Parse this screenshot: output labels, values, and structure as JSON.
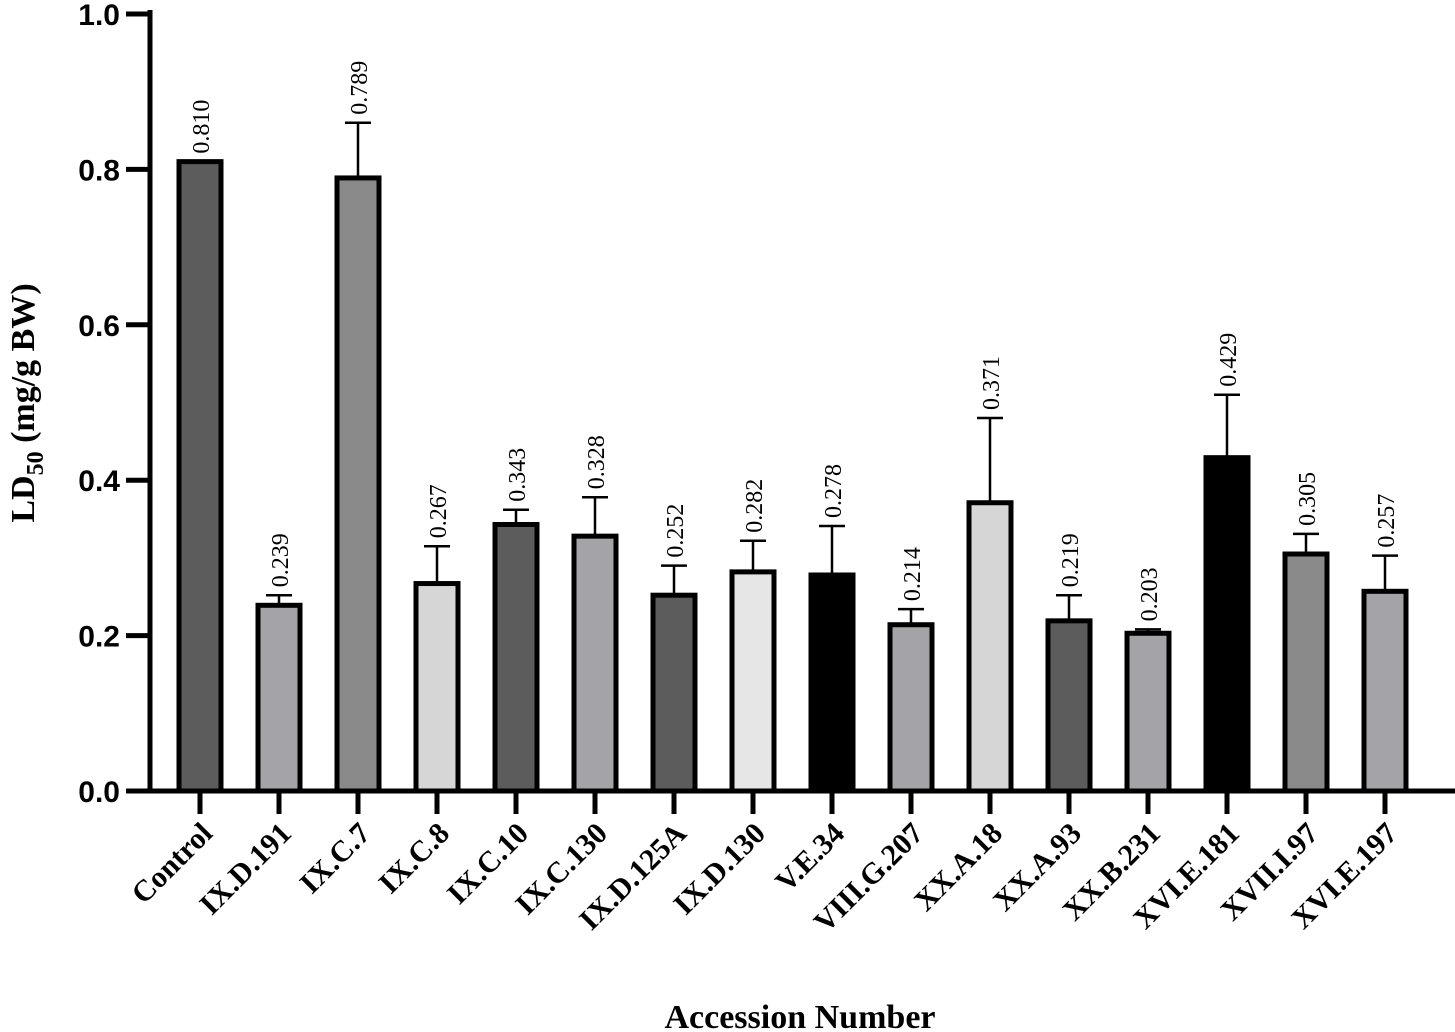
{
  "chart_data": {
    "type": "bar",
    "title": "",
    "xlabel": "Accession Number",
    "ylabel": "LD50 (mg/g BW)",
    "ylabel_main": "LD",
    "ylabel_sub": "50",
    "ylabel_rest": " (mg/g BW)",
    "ylim": [
      0,
      1.0
    ],
    "yticks": [
      "0.0",
      "0.2",
      "0.4",
      "0.6",
      "0.8",
      "1.0"
    ],
    "categories": [
      "Control",
      "IX.D.191",
      "IX.C.7",
      "IX.C.8",
      "IX.C.10",
      "IX.C.130",
      "IX.D.125A",
      "IX.D.130",
      "V.E.34",
      "VIII.G.207",
      "XX.A.18",
      "XX.A.93",
      "XX.B.231",
      "XVI.E.181",
      "XVII.I.97",
      "XVI.E.197"
    ],
    "values": [
      0.81,
      0.239,
      0.789,
      0.267,
      0.343,
      0.328,
      0.252,
      0.282,
      0.278,
      0.214,
      0.371,
      0.219,
      0.203,
      0.429,
      0.305,
      0.257
    ],
    "value_labels": [
      "0.810",
      "0.239",
      "0.789",
      "0.267",
      "0.343",
      "0.328",
      "0.252",
      "0.282",
      "0.278",
      "0.214",
      "0.371",
      "0.219",
      "0.203",
      "0.429",
      "0.305",
      "0.257"
    ],
    "error_upper": [
      0.81,
      0.252,
      0.86,
      0.315,
      0.362,
      0.378,
      0.29,
      0.322,
      0.341,
      0.234,
      0.48,
      0.252,
      0.208,
      0.51,
      0.331,
      0.303
    ],
    "colors": [
      "#5c5c5c",
      "#a3a3a8",
      "#8a8a8a",
      "#d6d6d6",
      "#5c5c5c",
      "#a3a3a8",
      "#5c5c5c",
      "#e6e6e6",
      "#000000",
      "#a3a3a8",
      "#d6d6d6",
      "#5c5c5c",
      "#a3a3a8",
      "#000000",
      "#8a8a8a",
      "#a3a3a8"
    ],
    "grid": false,
    "legend": "none"
  }
}
